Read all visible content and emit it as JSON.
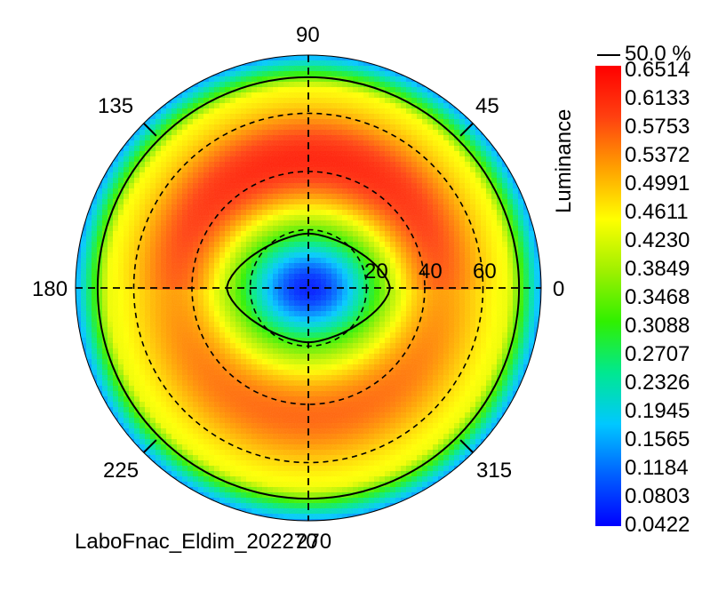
{
  "chart_data": {
    "type": "heatmap",
    "subtype": "polar (conoscopic viewing-angle plot)",
    "azimuth_labels": [
      "0",
      "45",
      "90",
      "135",
      "180",
      "225",
      "270",
      "315"
    ],
    "polar_angle_labels": [
      "20",
      "40",
      "60"
    ],
    "colorbar_title": "Luminance",
    "colorbar_ticks": [
      "0.6514",
      "0.6133",
      "0.5753",
      "0.5372",
      "0.4991",
      "0.4611",
      "0.4230",
      "0.3849",
      "0.3468",
      "0.3088",
      "0.2707",
      "0.2326",
      "0.1945",
      "0.1565",
      "0.1184",
      "0.0803",
      "0.0422"
    ],
    "colorbar_range": [
      0.0422,
      0.6514
    ],
    "colormap": [
      "#0000ff",
      "#0060ff",
      "#00c8ff",
      "#00e890",
      "#30f000",
      "#a0f000",
      "#ffff00",
      "#ffa000",
      "#ff4010",
      "#ff0000"
    ],
    "contour_legend": "50.0 %",
    "caption": "LaboFnac_Eldim_202270",
    "polar_max_deg": 80,
    "grid": "dashed",
    "approx_field": {
      "center_value": 0.06,
      "center_ring_value": 0.24,
      "mid_ring_value": 0.42,
      "upper_band_value": 0.62,
      "lower_band_value": 0.56,
      "outer_edge_value": 0.15
    }
  }
}
